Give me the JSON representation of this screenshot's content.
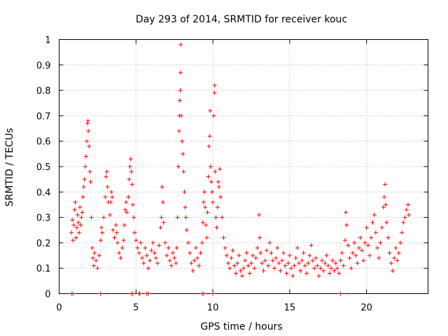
{
  "chart_data": {
    "type": "scatter",
    "title": "Day 293 of 2014, SRMTID for receiver kouc",
    "xlabel": "GPS time / hours",
    "ylabel": "SRMTID / TECUs",
    "xlim": [
      0,
      24
    ],
    "ylim": [
      0,
      1
    ],
    "x_ticks": [
      0,
      5,
      10,
      15,
      20
    ],
    "x_tick_labels": [
      "0",
      "5",
      "10",
      "15",
      "20"
    ],
    "y_ticks": [
      0,
      0.1,
      0.2,
      0.3,
      0.4,
      0.5,
      0.6,
      0.7,
      0.8,
      0.9,
      1
    ],
    "y_tick_labels": [
      "0",
      "0.1",
      "0.2",
      "0.3",
      "0.4",
      "0.5",
      "0.6",
      "0.7",
      "0.8",
      "0.9",
      "1"
    ],
    "grid": true,
    "marker": "+",
    "color": "#ff0000",
    "series": [
      {
        "name": "SRMTID",
        "points": [
          [
            0.8,
            0.24
          ],
          [
            0.85,
            0.29
          ],
          [
            0.9,
            0.21
          ],
          [
            0.95,
            0.27
          ],
          [
            1.0,
            0.33
          ],
          [
            1.05,
            0.36
          ],
          [
            1.1,
            0.22
          ],
          [
            1.15,
            0.26
          ],
          [
            1.2,
            0.31
          ],
          [
            1.25,
            0.28
          ],
          [
            1.3,
            0.24
          ],
          [
            1.35,
            0.34
          ],
          [
            1.4,
            0.27
          ],
          [
            1.45,
            0.3
          ],
          [
            1.5,
            0.32
          ],
          [
            1.55,
            0.38
          ],
          [
            1.6,
            0.42
          ],
          [
            1.65,
            0.45
          ],
          [
            1.7,
            0.5
          ],
          [
            1.75,
            0.54
          ],
          [
            1.8,
            0.6
          ],
          [
            1.85,
            0.67
          ],
          [
            1.88,
            0.68
          ],
          [
            1.9,
            0.64
          ],
          [
            1.95,
            0.58
          ],
          [
            2.0,
            0.48
          ],
          [
            2.05,
            0.44
          ],
          [
            2.1,
            0.3
          ],
          [
            2.15,
            0.18
          ],
          [
            2.2,
            0.14
          ],
          [
            2.25,
            0.11
          ],
          [
            2.3,
            0.16
          ],
          [
            2.4,
            0.13
          ],
          [
            2.5,
            0.1
          ],
          [
            2.6,
            0.15
          ],
          [
            2.7,
            0.21
          ],
          [
            2.75,
            0.26
          ],
          [
            2.8,
            0.24
          ],
          [
            2.9,
            0.3
          ],
          [
            3.0,
            0.38
          ],
          [
            3.05,
            0.46
          ],
          [
            3.1,
            0.48
          ],
          [
            3.15,
            0.42
          ],
          [
            3.2,
            0.36
          ],
          [
            3.3,
            0.31
          ],
          [
            3.35,
            0.36
          ],
          [
            3.4,
            0.4
          ],
          [
            3.45,
            0.38
          ],
          [
            3.5,
            0.25
          ],
          [
            3.6,
            0.22
          ],
          [
            3.7,
            0.27
          ],
          [
            3.75,
            0.24
          ],
          [
            3.8,
            0.2
          ],
          [
            3.9,
            0.16
          ],
          [
            4.0,
            0.14
          ],
          [
            4.1,
            0.18
          ],
          [
            4.2,
            0.21
          ],
          [
            4.25,
            0.27
          ],
          [
            4.3,
            0.33
          ],
          [
            4.35,
            0.36
          ],
          [
            4.4,
            0.32
          ],
          [
            4.5,
            0.38
          ],
          [
            4.55,
            0.45
          ],
          [
            4.6,
            0.5
          ],
          [
            4.65,
            0.53
          ],
          [
            4.7,
            0.48
          ],
          [
            4.75,
            0.43
          ],
          [
            4.8,
            0.35
          ],
          [
            4.85,
            0.3
          ],
          [
            4.9,
            0.24
          ],
          [
            5.0,
            0.21
          ],
          [
            5.1,
            0.18
          ],
          [
            5.2,
            0.16
          ],
          [
            5.3,
            0.2
          ],
          [
            5.4,
            0.14
          ],
          [
            5.5,
            0.12
          ],
          [
            5.6,
            0.18
          ],
          [
            5.7,
            0.15
          ],
          [
            5.8,
            0.1
          ],
          [
            5.9,
            0.13
          ],
          [
            6.0,
            0.17
          ],
          [
            6.1,
            0.2
          ],
          [
            6.2,
            0.16
          ],
          [
            6.3,
            0.14
          ],
          [
            6.4,
            0.12
          ],
          [
            6.5,
            0.19
          ],
          [
            6.6,
            0.26
          ],
          [
            6.65,
            0.3
          ],
          [
            6.7,
            0.42
          ],
          [
            6.75,
            0.36
          ],
          [
            6.8,
            0.28
          ],
          [
            6.9,
            0.2
          ],
          [
            7.0,
            0.15
          ],
          [
            7.1,
            0.18
          ],
          [
            7.2,
            0.13
          ],
          [
            7.3,
            0.11
          ],
          [
            7.4,
            0.16
          ],
          [
            7.5,
            0.14
          ],
          [
            7.6,
            0.12
          ],
          [
            7.65,
            0.18
          ],
          [
            7.7,
            0.3
          ],
          [
            7.75,
            0.5
          ],
          [
            7.8,
            0.64
          ],
          [
            7.82,
            0.7
          ],
          [
            7.85,
            0.76
          ],
          [
            7.88,
            0.8
          ],
          [
            7.9,
            0.87
          ],
          [
            7.92,
            0.98
          ],
          [
            7.95,
            0.7
          ],
          [
            8.0,
            0.6
          ],
          [
            8.05,
            0.55
          ],
          [
            8.1,
            0.48
          ],
          [
            8.15,
            0.4
          ],
          [
            8.2,
            0.34
          ],
          [
            8.25,
            0.3
          ],
          [
            8.3,
            0.25
          ],
          [
            8.4,
            0.2
          ],
          [
            8.5,
            0.16
          ],
          [
            8.6,
            0.12
          ],
          [
            8.7,
            0.09
          ],
          [
            8.8,
            0.13
          ],
          [
            8.9,
            0.18
          ],
          [
            9.0,
            0.14
          ],
          [
            9.1,
            0.11
          ],
          [
            9.2,
            0.16
          ],
          [
            9.3,
            0.2
          ],
          [
            9.35,
            0.28
          ],
          [
            9.4,
            0.36
          ],
          [
            9.45,
            0.4
          ],
          [
            9.5,
            0.34
          ],
          [
            9.55,
            0.27
          ],
          [
            9.6,
            0.22
          ],
          [
            9.65,
            0.32
          ],
          [
            9.7,
            0.46
          ],
          [
            9.75,
            0.58
          ],
          [
            9.8,
            0.62
          ],
          [
            9.82,
            0.72
          ],
          [
            9.85,
            0.5
          ],
          [
            9.9,
            0.44
          ],
          [
            9.95,
            0.4
          ],
          [
            10.0,
            0.36
          ],
          [
            10.05,
            0.7
          ],
          [
            10.1,
            0.79
          ],
          [
            10.12,
            0.82
          ],
          [
            10.15,
            0.48
          ],
          [
            10.2,
            0.3
          ],
          [
            10.25,
            0.26
          ],
          [
            10.3,
            0.34
          ],
          [
            10.35,
            0.44
          ],
          [
            10.4,
            0.42
          ],
          [
            10.45,
            0.49
          ],
          [
            10.5,
            0.38
          ],
          [
            10.6,
            0.3
          ],
          [
            10.7,
            0.22
          ],
          [
            10.8,
            0.18
          ],
          [
            10.9,
            0.15
          ],
          [
            11.0,
            0.12
          ],
          [
            11.1,
            0.1
          ],
          [
            11.2,
            0.14
          ],
          [
            11.3,
            0.17
          ],
          [
            11.4,
            0.11
          ],
          [
            11.5,
            0.08
          ],
          [
            11.6,
            0.12
          ],
          [
            11.7,
            0.15
          ],
          [
            11.8,
            0.09
          ],
          [
            11.9,
            0.07
          ],
          [
            12.0,
            0.1
          ],
          [
            12.1,
            0.13
          ],
          [
            12.2,
            0.16
          ],
          [
            12.3,
            0.11
          ],
          [
            12.4,
            0.08
          ],
          [
            12.5,
            0.12
          ],
          [
            12.6,
            0.15
          ],
          [
            12.7,
            0.1
          ],
          [
            12.8,
            0.14
          ],
          [
            12.9,
            0.18
          ],
          [
            13.0,
            0.31
          ],
          [
            13.05,
            0.22
          ],
          [
            13.1,
            0.16
          ],
          [
            13.2,
            0.12
          ],
          [
            13.3,
            0.09
          ],
          [
            13.4,
            0.13
          ],
          [
            13.5,
            0.17
          ],
          [
            13.6,
            0.11
          ],
          [
            13.7,
            0.2
          ],
          [
            13.8,
            0.16
          ],
          [
            13.9,
            0.13
          ],
          [
            14.0,
            0.1
          ],
          [
            14.1,
            0.14
          ],
          [
            14.2,
            0.18
          ],
          [
            14.3,
            0.12
          ],
          [
            14.4,
            0.09
          ],
          [
            14.5,
            0.13
          ],
          [
            14.6,
            0.16
          ],
          [
            14.7,
            0.11
          ],
          [
            14.8,
            0.08
          ],
          [
            14.9,
            0.12
          ],
          [
            15.0,
            0.15
          ],
          [
            15.1,
            0.1
          ],
          [
            15.2,
            0.07
          ],
          [
            15.3,
            0.11
          ],
          [
            15.4,
            0.14
          ],
          [
            15.5,
            0.18
          ],
          [
            15.6,
            0.12
          ],
          [
            15.7,
            0.09
          ],
          [
            15.8,
            0.13
          ],
          [
            15.9,
            0.16
          ],
          [
            16.0,
            0.11
          ],
          [
            16.1,
            0.08
          ],
          [
            16.2,
            0.12
          ],
          [
            16.3,
            0.15
          ],
          [
            16.4,
            0.19
          ],
          [
            16.5,
            0.13
          ],
          [
            16.6,
            0.1
          ],
          [
            16.7,
            0.14
          ],
          [
            16.8,
            0.11
          ],
          [
            16.9,
            0.07
          ],
          [
            17.0,
            0.1
          ],
          [
            17.1,
            0.13
          ],
          [
            17.2,
            0.09
          ],
          [
            17.3,
            0.12
          ],
          [
            17.4,
            0.15
          ],
          [
            17.5,
            0.11
          ],
          [
            17.6,
            0.08
          ],
          [
            17.7,
            0.1
          ],
          [
            17.8,
            0.13
          ],
          [
            17.9,
            0.09
          ],
          [
            18.0,
            0.12
          ],
          [
            18.1,
            0.1
          ],
          [
            18.2,
            0.08
          ],
          [
            18.3,
            0.13
          ],
          [
            18.4,
            0.16
          ],
          [
            18.5,
            0.11
          ],
          [
            18.6,
            0.21
          ],
          [
            18.65,
            0.32
          ],
          [
            18.7,
            0.27
          ],
          [
            18.8,
            0.19
          ],
          [
            18.9,
            0.14
          ],
          [
            19.0,
            0.1
          ],
          [
            19.1,
            0.16
          ],
          [
            19.2,
            0.2
          ],
          [
            19.3,
            0.15
          ],
          [
            19.4,
            0.12
          ],
          [
            19.5,
            0.18
          ],
          [
            19.6,
            0.22
          ],
          [
            19.7,
            0.17
          ],
          [
            19.8,
            0.13
          ],
          [
            19.9,
            0.2
          ],
          [
            20.0,
            0.26
          ],
          [
            20.1,
            0.19
          ],
          [
            20.2,
            0.15
          ],
          [
            20.3,
            0.22
          ],
          [
            20.4,
            0.28
          ],
          [
            20.5,
            0.31
          ],
          [
            20.6,
            0.24
          ],
          [
            20.7,
            0.18
          ],
          [
            20.8,
            0.14
          ],
          [
            20.9,
            0.2
          ],
          [
            21.0,
            0.26
          ],
          [
            21.1,
            0.34
          ],
          [
            21.15,
            0.38
          ],
          [
            21.2,
            0.43
          ],
          [
            21.25,
            0.35
          ],
          [
            21.3,
            0.28
          ],
          [
            21.4,
            0.22
          ],
          [
            21.5,
            0.16
          ],
          [
            21.6,
            0.12
          ],
          [
            21.7,
            0.09
          ],
          [
            21.8,
            0.14
          ],
          [
            21.9,
            0.18
          ],
          [
            22.0,
            0.13
          ],
          [
            22.1,
            0.16
          ],
          [
            22.2,
            0.2
          ],
          [
            22.3,
            0.24
          ],
          [
            22.4,
            0.28
          ],
          [
            22.5,
            0.3
          ],
          [
            22.6,
            0.33
          ],
          [
            22.7,
            0.35
          ],
          [
            22.75,
            0.31
          ]
        ]
      },
      {
        "name": "SRMTID baseline markers",
        "points": [
          [
            0.8,
            0
          ],
          [
            0.9,
            0
          ],
          [
            2.7,
            0
          ],
          [
            4.7,
            0
          ],
          [
            4.8,
            0
          ],
          [
            5.2,
            0
          ],
          [
            5.25,
            0
          ],
          [
            5.7,
            0
          ],
          [
            5.8,
            0
          ],
          [
            9.3,
            0
          ],
          [
            9.4,
            0
          ],
          [
            10.0,
            0
          ],
          [
            18.3,
            0
          ]
        ]
      }
    ]
  }
}
